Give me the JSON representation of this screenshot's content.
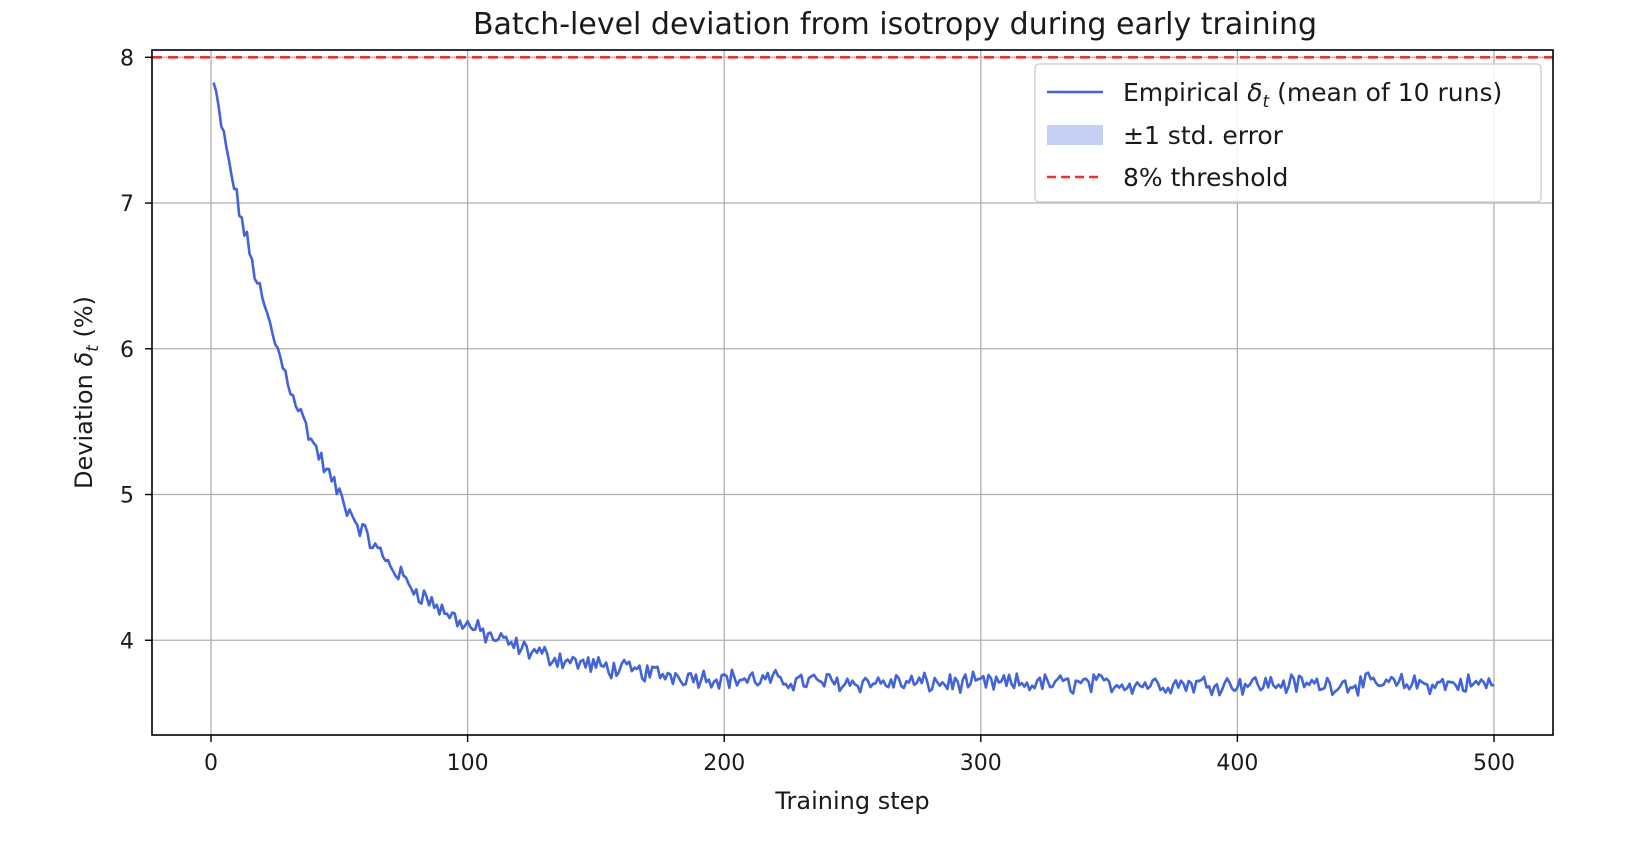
{
  "chart_data": {
    "type": "line",
    "title": "Batch-level deviation from isotropy during early training",
    "xlabel": "Training step",
    "ylabel": "Deviation δ_t (%)",
    "ylabel_main": "Deviation ",
    "ylabel_symbol": "δ",
    "ylabel_sub": "t",
    "ylabel_tail": " (%)",
    "xlim": [
      -23,
      523
    ],
    "ylim": [
      3.35,
      8.05
    ],
    "xticks": [
      0,
      100,
      200,
      300,
      400,
      500
    ],
    "yticks": [
      4,
      5,
      6,
      7,
      8
    ],
    "grid": true,
    "legend_position": "top-right",
    "series": [
      {
        "name": "Empirical δ_t (mean of 10 runs)",
        "kind": "line",
        "color": "#4363d8",
        "model": {
          "x_start": 1,
          "x_end": 500,
          "asymptote": 3.7,
          "start_value": 7.82,
          "decay_rate": 0.0235,
          "noise_amplitude": 0.055
        }
      },
      {
        "name": "±1 std. error",
        "kind": "band",
        "color": "#4363d8"
      },
      {
        "name": "8% threshold",
        "kind": "hline",
        "y": 8.0,
        "color": "#e8342a"
      }
    ],
    "legend": [
      {
        "pre": "Empirical ",
        "symbol": "δ",
        "sub": "t",
        "post": " (mean of 10 runs)"
      },
      {
        "text": "±1 std. error"
      },
      {
        "text": "8% threshold"
      }
    ]
  }
}
